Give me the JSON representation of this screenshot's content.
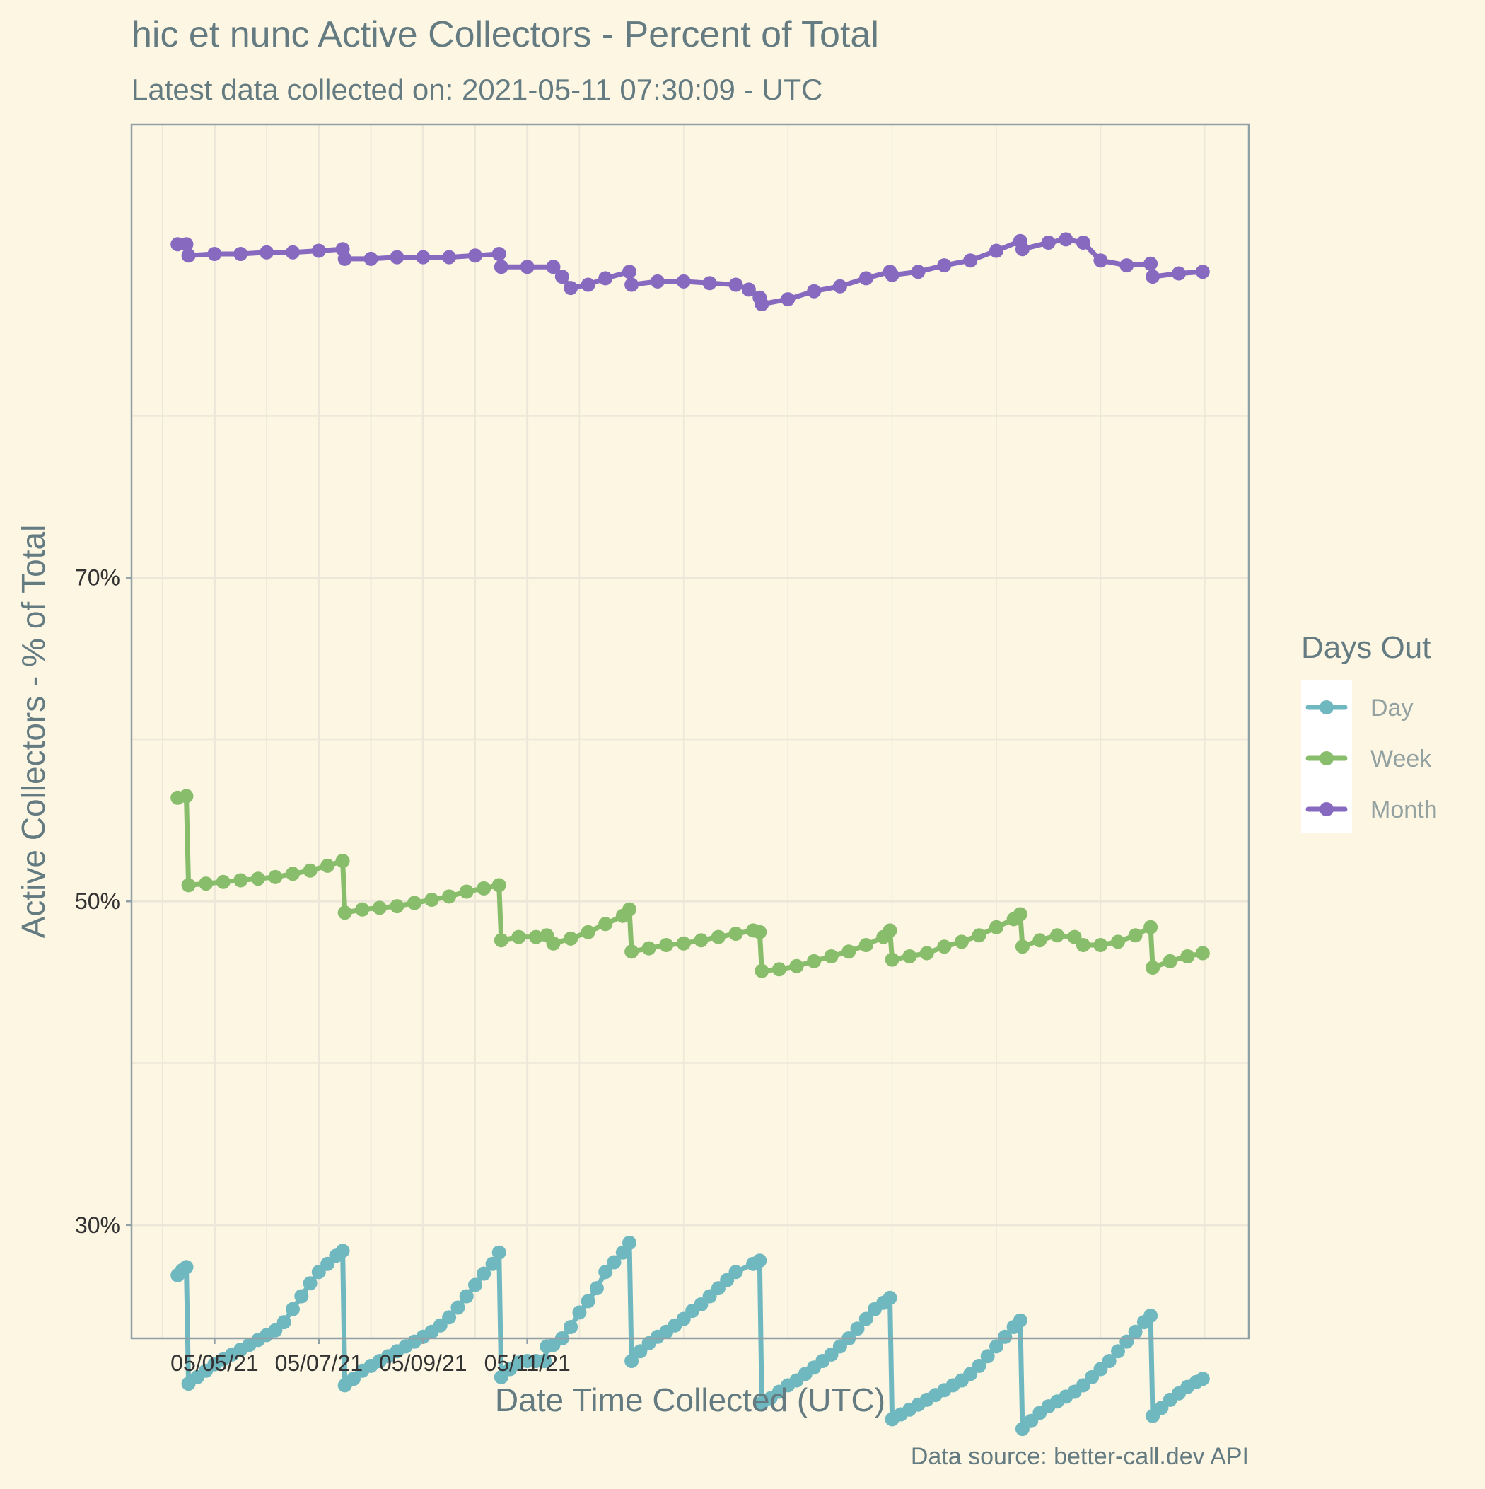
{
  "chart_data": {
    "type": "line",
    "title": "hic et nunc Active Collectors - Percent of Total",
    "subtitle": "Latest data collected on: 2021-05-11 07:30:09  - UTC",
    "xlabel": "Date Time Collected (UTC)",
    "ylabel": "Active Collectors - % of Total",
    "caption": "Data source: better-call.dev API",
    "x_ticks": [
      "05/05/21",
      "05/07/21",
      "05/09/21",
      "05/11/21"
    ],
    "y_ticks": [
      "30%",
      "50%",
      "70%"
    ],
    "ylim": [
      23,
      98
    ],
    "grid": true,
    "legend": {
      "title": "Days Out",
      "position": "right",
      "items": [
        {
          "name": "Day",
          "color": "#6fb8c0"
        },
        {
          "name": "Week",
          "color": "#87bd6b"
        },
        {
          "name": "Month",
          "color": "#876ac0"
        }
      ]
    },
    "background": "#fdf6e3",
    "series": [
      {
        "name": "Day",
        "color": "#6fb8c0",
        "points": [
          [
            "05/04/21 07:00",
            26.9
          ],
          [
            "05/04/21 09:00",
            27.2
          ],
          [
            "05/04/21 11:00",
            27.4
          ],
          [
            "05/04/21 12:00",
            20.2
          ],
          [
            "05/04/21 16:00",
            20.6
          ],
          [
            "05/04/21 20:00",
            21.0
          ],
          [
            "05/05/21 00:00",
            21.4
          ],
          [
            "05/05/21 04:00",
            21.7
          ],
          [
            "05/05/21 08:00",
            22.0
          ],
          [
            "05/05/21 12:00",
            22.3
          ],
          [
            "05/05/21 16:00",
            22.6
          ],
          [
            "05/05/21 20:00",
            22.9
          ],
          [
            "05/06/21 00:00",
            23.2
          ],
          [
            "05/06/21 04:00",
            23.5
          ],
          [
            "05/06/21 08:00",
            24.0
          ],
          [
            "05/06/21 12:00",
            24.8
          ],
          [
            "05/06/21 16:00",
            25.6
          ],
          [
            "05/06/21 20:00",
            26.4
          ],
          [
            "05/07/21 00:00",
            27.1
          ],
          [
            "05/07/21 04:00",
            27.6
          ],
          [
            "05/07/21 08:00",
            28.1
          ],
          [
            "05/07/21 11:00",
            28.4
          ],
          [
            "05/07/21 12:00",
            20.1
          ],
          [
            "05/07/21 16:00",
            20.5
          ],
          [
            "05/07/21 20:00",
            21.0
          ],
          [
            "05/08/21 00:00",
            21.3
          ],
          [
            "05/08/21 04:00",
            21.6
          ],
          [
            "05/08/21 08:00",
            21.9
          ],
          [
            "05/08/21 12:00",
            22.2
          ],
          [
            "05/08/21 16:00",
            22.5
          ],
          [
            "05/08/21 20:00",
            22.8
          ],
          [
            "05/09/21 00:00",
            23.1
          ],
          [
            "05/09/21 04:00",
            23.4
          ],
          [
            "05/09/21 08:00",
            23.8
          ],
          [
            "05/09/21 12:00",
            24.3
          ],
          [
            "05/09/21 16:00",
            24.9
          ],
          [
            "05/09/21 20:00",
            25.6
          ],
          [
            "05/10/21 00:00",
            26.3
          ],
          [
            "05/10/21 04:00",
            27.0
          ],
          [
            "05/10/21 08:00",
            27.6
          ],
          [
            "05/10/21 11:00",
            28.3
          ],
          [
            "05/10/21 12:00",
            20.6
          ],
          [
            "05/10/21 16:00",
            21.1
          ],
          [
            "05/10/21 20:00",
            21.5
          ],
          [
            "05/11/21 00:00",
            21.6
          ],
          [
            "05/11/21 04:00",
            21.6
          ],
          [
            "05/11/21 08:00",
            21.6
          ],
          [
            "05/11/21 09:00",
            22.5
          ],
          [
            "05/11/21 12:00",
            22.6
          ],
          [
            "05/11/21 16:00",
            23.0
          ],
          [
            "05/11/21 20:00",
            23.7
          ],
          [
            "05/12/21 00:00",
            24.6
          ],
          [
            "05/12/21 04:00",
            25.3
          ],
          [
            "05/12/21 08:00",
            26.1
          ],
          [
            "05/12/21 12:00",
            27.1
          ],
          [
            "05/12/21 16:00",
            27.7
          ],
          [
            "05/12/21 20:00",
            28.3
          ],
          [
            "05/12/21 23:00",
            28.9
          ],
          [
            "05/13/21 00:00",
            21.6
          ],
          [
            "05/13/21 04:00",
            22.2
          ],
          [
            "05/13/21 08:00",
            22.7
          ],
          [
            "05/13/21 12:00",
            23.1
          ],
          [
            "05/13/21 16:00",
            23.4
          ],
          [
            "05/13/21 20:00",
            23.8
          ],
          [
            "05/14/21 00:00",
            24.2
          ],
          [
            "05/14/21 04:00",
            24.7
          ],
          [
            "05/14/21 08:00",
            25.1
          ],
          [
            "05/14/21 12:00",
            25.6
          ],
          [
            "05/14/21 16:00",
            26.1
          ],
          [
            "05/14/21 20:00",
            26.6
          ],
          [
            "05/15/21 00:00",
            27.1
          ],
          [
            "05/15/21 08:00",
            27.6
          ],
          [
            "05/15/21 11:00",
            27.8
          ],
          [
            "05/15/21 12:00",
            19.0
          ],
          [
            "05/15/21 16:00",
            19.3
          ],
          [
            "05/15/21 20:00",
            19.7
          ],
          [
            "05/16/21 00:00",
            20.1
          ],
          [
            "05/16/21 04:00",
            20.4
          ],
          [
            "05/16/21 08:00",
            20.8
          ],
          [
            "05/16/21 12:00",
            21.2
          ],
          [
            "05/16/21 16:00",
            21.6
          ],
          [
            "05/16/21 20:00",
            22.0
          ],
          [
            "05/17/21 00:00",
            22.5
          ],
          [
            "05/17/21 04:00",
            23.0
          ],
          [
            "05/17/21 08:00",
            23.6
          ],
          [
            "05/17/21 12:00",
            24.2
          ],
          [
            "05/17/21 16:00",
            24.8
          ],
          [
            "05/17/21 20:00",
            25.2
          ],
          [
            "05/17/21 23:00",
            25.5
          ],
          [
            "05/18/21 00:00",
            18.0
          ],
          [
            "05/18/21 04:00",
            18.3
          ],
          [
            "05/18/21 08:00",
            18.6
          ],
          [
            "05/18/21 12:00",
            18.9
          ],
          [
            "05/18/21 16:00",
            19.2
          ],
          [
            "05/18/21 20:00",
            19.5
          ],
          [
            "05/19/21 00:00",
            19.8
          ],
          [
            "05/19/21 04:00",
            20.1
          ],
          [
            "05/19/21 08:00",
            20.4
          ],
          [
            "05/19/21 12:00",
            20.8
          ],
          [
            "05/19/21 16:00",
            21.3
          ],
          [
            "05/19/21 20:00",
            21.9
          ],
          [
            "05/20/21 00:00",
            22.5
          ],
          [
            "05/20/21 04:00",
            23.1
          ],
          [
            "05/20/21 08:00",
            23.7
          ],
          [
            "05/20/21 11:00",
            24.1
          ],
          [
            "05/20/21 12:00",
            17.4
          ],
          [
            "05/20/21 16:00",
            17.9
          ],
          [
            "05/20/21 20:00",
            18.4
          ],
          [
            "05/21/21 00:00",
            18.8
          ],
          [
            "05/21/21 04:00",
            19.1
          ],
          [
            "05/21/21 08:00",
            19.4
          ],
          [
            "05/21/21 12:00",
            19.7
          ],
          [
            "05/21/21 16:00",
            20.1
          ],
          [
            "05/21/21 20:00",
            20.6
          ],
          [
            "05/22/21 00:00",
            21.1
          ],
          [
            "05/22/21 04:00",
            21.6
          ],
          [
            "05/22/21 08:00",
            22.2
          ],
          [
            "05/22/21 12:00",
            22.8
          ],
          [
            "05/22/21 16:00",
            23.4
          ],
          [
            "05/22/21 20:00",
            24.0
          ],
          [
            "05/22/21 23:00",
            24.4
          ],
          [
            "05/23/21 00:00",
            18.2
          ],
          [
            "05/23/21 04:00",
            18.7
          ],
          [
            "05/23/21 08:00",
            19.2
          ],
          [
            "05/23/21 12:00",
            19.6
          ],
          [
            "05/23/21 16:00",
            20.0
          ],
          [
            "05/23/21 20:00",
            20.3
          ],
          [
            "05/23/21 23:00",
            20.5
          ]
        ]
      },
      {
        "name": "Week",
        "color": "#87bd6b",
        "points": [
          [
            "05/04/21 07:00",
            56.4
          ],
          [
            "05/04/21 11:00",
            56.5
          ],
          [
            "05/04/21 12:00",
            51.0
          ],
          [
            "05/04/21 20:00",
            51.1
          ],
          [
            "05/05/21 04:00",
            51.2
          ],
          [
            "05/05/21 12:00",
            51.3
          ],
          [
            "05/05/21 20:00",
            51.4
          ],
          [
            "05/06/21 04:00",
            51.5
          ],
          [
            "05/06/21 12:00",
            51.7
          ],
          [
            "05/06/21 20:00",
            51.9
          ],
          [
            "05/07/21 04:00",
            52.2
          ],
          [
            "05/07/21 11:00",
            52.5
          ],
          [
            "05/07/21 12:00",
            49.3
          ],
          [
            "05/07/21 20:00",
            49.5
          ],
          [
            "05/08/21 04:00",
            49.6
          ],
          [
            "05/08/21 12:00",
            49.7
          ],
          [
            "05/08/21 20:00",
            49.9
          ],
          [
            "05/09/21 04:00",
            50.1
          ],
          [
            "05/09/21 12:00",
            50.3
          ],
          [
            "05/09/21 20:00",
            50.6
          ],
          [
            "05/10/21 04:00",
            50.8
          ],
          [
            "05/10/21 11:00",
            51.0
          ],
          [
            "05/10/21 12:00",
            47.6
          ],
          [
            "05/10/21 20:00",
            47.8
          ],
          [
            "05/11/21 04:00",
            47.8
          ],
          [
            "05/11/21 09:00",
            47.9
          ],
          [
            "05/11/21 12:00",
            47.4
          ],
          [
            "05/11/21 20:00",
            47.7
          ],
          [
            "05/12/21 04:00",
            48.1
          ],
          [
            "05/12/21 12:00",
            48.6
          ],
          [
            "05/12/21 20:00",
            49.1
          ],
          [
            "05/12/21 23:00",
            49.5
          ],
          [
            "05/13/21 00:00",
            46.9
          ],
          [
            "05/13/21 08:00",
            47.1
          ],
          [
            "05/13/21 16:00",
            47.3
          ],
          [
            "05/14/21 00:00",
            47.4
          ],
          [
            "05/14/21 08:00",
            47.6
          ],
          [
            "05/14/21 16:00",
            47.8
          ],
          [
            "05/15/21 00:00",
            48.0
          ],
          [
            "05/15/21 08:00",
            48.2
          ],
          [
            "05/15/21 11:00",
            48.1
          ],
          [
            "05/15/21 12:00",
            45.7
          ],
          [
            "05/15/21 20:00",
            45.8
          ],
          [
            "05/16/21 04:00",
            46.0
          ],
          [
            "05/16/21 12:00",
            46.3
          ],
          [
            "05/16/21 20:00",
            46.6
          ],
          [
            "05/17/21 04:00",
            46.9
          ],
          [
            "05/17/21 12:00",
            47.3
          ],
          [
            "05/17/21 20:00",
            47.8
          ],
          [
            "05/17/21 23:00",
            48.2
          ],
          [
            "05/18/21 00:00",
            46.4
          ],
          [
            "05/18/21 08:00",
            46.6
          ],
          [
            "05/18/21 16:00",
            46.8
          ],
          [
            "05/19/21 00:00",
            47.2
          ],
          [
            "05/19/21 08:00",
            47.5
          ],
          [
            "05/19/21 16:00",
            47.9
          ],
          [
            "05/20/21 00:00",
            48.4
          ],
          [
            "05/20/21 08:00",
            48.9
          ],
          [
            "05/20/21 11:00",
            49.2
          ],
          [
            "05/20/21 12:00",
            47.2
          ],
          [
            "05/20/21 20:00",
            47.6
          ],
          [
            "05/21/21 04:00",
            47.9
          ],
          [
            "05/21/21 12:00",
            47.8
          ],
          [
            "05/21/21 16:00",
            47.3
          ],
          [
            "05/22/21 00:00",
            47.3
          ],
          [
            "05/22/21 08:00",
            47.5
          ],
          [
            "05/22/21 16:00",
            47.9
          ],
          [
            "05/22/21 23:00",
            48.4
          ],
          [
            "05/23/21 00:00",
            45.9
          ],
          [
            "05/23/21 08:00",
            46.3
          ],
          [
            "05/23/21 16:00",
            46.6
          ],
          [
            "05/23/21 23:00",
            46.8
          ]
        ]
      },
      {
        "name": "Month",
        "color": "#876ac0",
        "points": [
          [
            "05/04/21 07:00",
            90.6
          ],
          [
            "05/04/21 11:00",
            90.6
          ],
          [
            "05/04/21 12:00",
            89.9
          ],
          [
            "05/05/21 00:00",
            90.0
          ],
          [
            "05/05/21 12:00",
            90.0
          ],
          [
            "05/06/21 00:00",
            90.1
          ],
          [
            "05/06/21 12:00",
            90.1
          ],
          [
            "05/07/21 00:00",
            90.2
          ],
          [
            "05/07/21 11:00",
            90.3
          ],
          [
            "05/07/21 12:00",
            89.7
          ],
          [
            "05/08/21 00:00",
            89.7
          ],
          [
            "05/08/21 12:00",
            89.8
          ],
          [
            "05/09/21 00:00",
            89.8
          ],
          [
            "05/09/21 12:00",
            89.8
          ],
          [
            "05/10/21 00:00",
            89.9
          ],
          [
            "05/10/21 11:00",
            90.0
          ],
          [
            "05/10/21 12:00",
            89.2
          ],
          [
            "05/11/21 00:00",
            89.2
          ],
          [
            "05/11/21 12:00",
            89.2
          ],
          [
            "05/11/21 16:00",
            88.6
          ],
          [
            "05/11/21 20:00",
            87.9
          ],
          [
            "05/12/21 04:00",
            88.1
          ],
          [
            "05/12/21 12:00",
            88.5
          ],
          [
            "05/12/21 23:00",
            88.9
          ],
          [
            "05/13/21 00:00",
            88.1
          ],
          [
            "05/13/21 12:00",
            88.3
          ],
          [
            "05/14/21 00:00",
            88.3
          ],
          [
            "05/14/21 12:00",
            88.2
          ],
          [
            "05/15/21 00:00",
            88.1
          ],
          [
            "05/15/21 06:00",
            87.8
          ],
          [
            "05/15/21 11:00",
            87.3
          ],
          [
            "05/15/21 12:00",
            86.9
          ],
          [
            "05/16/21 00:00",
            87.2
          ],
          [
            "05/16/21 12:00",
            87.7
          ],
          [
            "05/17/21 00:00",
            88.0
          ],
          [
            "05/17/21 12:00",
            88.5
          ],
          [
            "05/17/21 23:00",
            88.9
          ],
          [
            "05/18/21 00:00",
            88.7
          ],
          [
            "05/18/21 12:00",
            88.9
          ],
          [
            "05/19/21 00:00",
            89.3
          ],
          [
            "05/19/21 12:00",
            89.6
          ],
          [
            "05/20/21 00:00",
            90.2
          ],
          [
            "05/20/21 11:00",
            90.8
          ],
          [
            "05/20/21 12:00",
            90.3
          ],
          [
            "05/21/21 00:00",
            90.7
          ],
          [
            "05/21/21 08:00",
            90.9
          ],
          [
            "05/21/21 16:00",
            90.7
          ],
          [
            "05/22/21 00:00",
            89.6
          ],
          [
            "05/22/21 12:00",
            89.3
          ],
          [
            "05/22/21 23:00",
            89.4
          ],
          [
            "05/23/21 00:00",
            88.6
          ],
          [
            "05/23/21 12:00",
            88.8
          ],
          [
            "05/23/21 23:00",
            88.9
          ]
        ]
      }
    ]
  }
}
